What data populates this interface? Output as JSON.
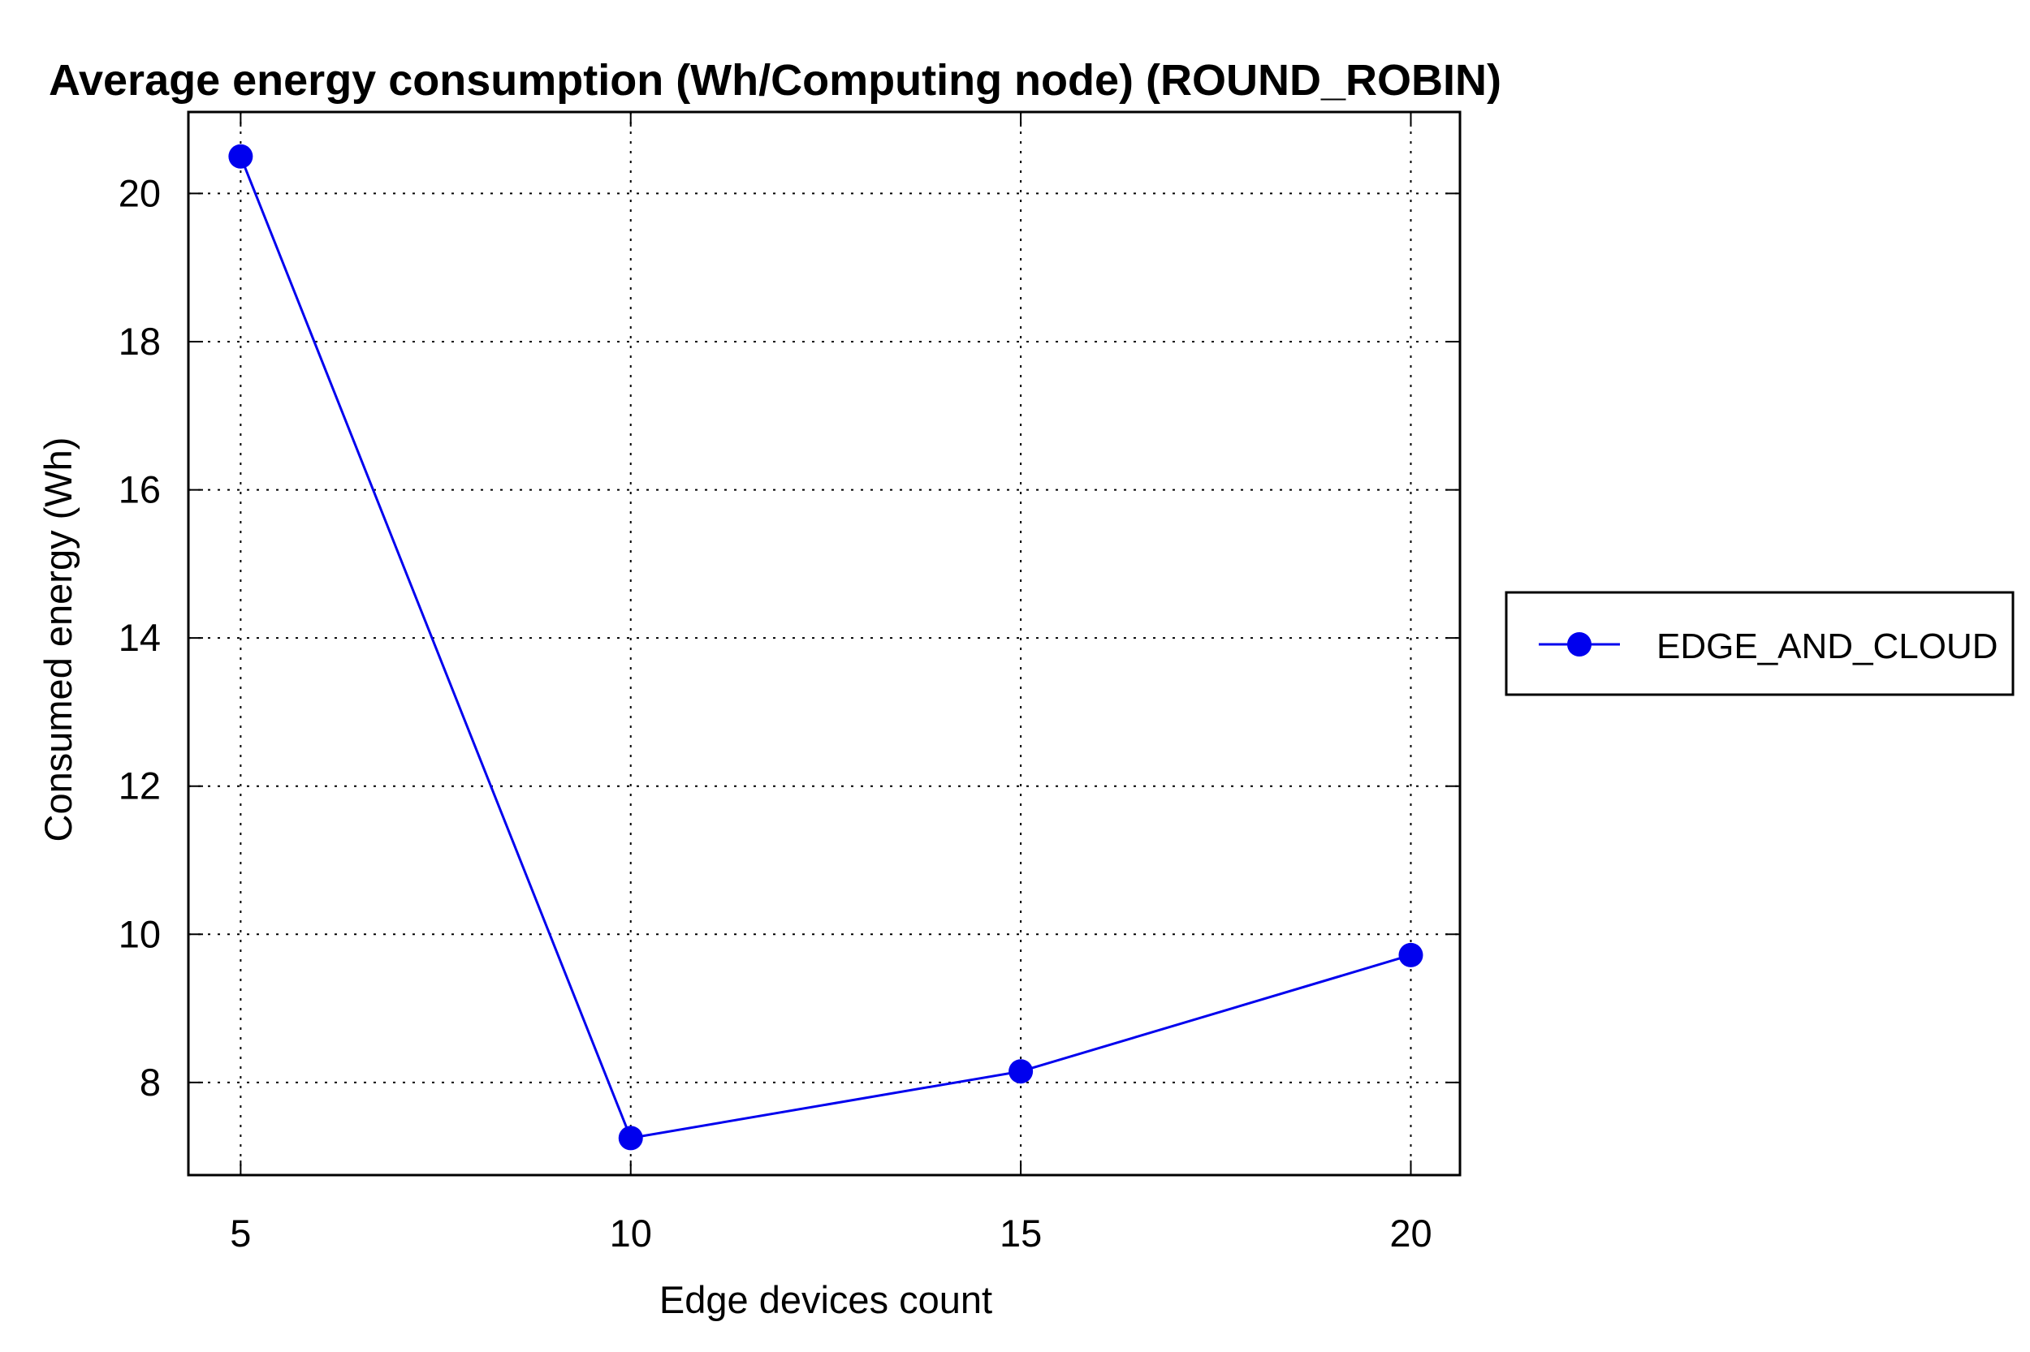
{
  "chart_data": {
    "type": "line",
    "title": "Average energy consumption (Wh/Computing node) (ROUND_ROBIN)",
    "xlabel": "Edge devices count",
    "ylabel": "Consumed energy (Wh)",
    "x": [
      5,
      10,
      15,
      20
    ],
    "xticks": [
      5,
      10,
      15,
      20
    ],
    "yticks": [
      8,
      10,
      12,
      14,
      16,
      18,
      20
    ],
    "xlim": [
      4.33,
      20.63
    ],
    "ylim": [
      6.75,
      21.1
    ],
    "grid": true,
    "legend_position": "right",
    "series": [
      {
        "name": "EDGE_AND_CLOUD",
        "color": "#0000ee",
        "marker": "circle",
        "values": [
          20.5,
          7.25,
          8.15,
          9.72
        ]
      }
    ]
  }
}
